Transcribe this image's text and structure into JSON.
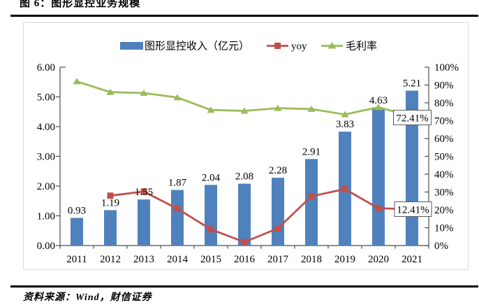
{
  "page": {
    "title": "图 6：图形显控业务规模",
    "source": "资料来源：Wind，财信证券"
  },
  "chart_data": {
    "type": "bar",
    "title": "图 6：图形显控业务规模",
    "categories": [
      "2011",
      "2012",
      "2013",
      "2014",
      "2015",
      "2016",
      "2017",
      "2018",
      "2019",
      "2020",
      "2021"
    ],
    "series": [
      {
        "name": "图形显控收入（亿元）",
        "type": "bar",
        "axis": "left",
        "color": "#4F81BD",
        "values": [
          0.93,
          1.19,
          1.55,
          1.87,
          2.04,
          2.08,
          2.28,
          2.91,
          3.83,
          4.63,
          5.21
        ],
        "labels": [
          "0.93",
          "1.19",
          "1.55",
          "1.87",
          "2.04",
          "2.08",
          "2.28",
          "2.91",
          "3.83",
          "4.63",
          "5.21"
        ]
      },
      {
        "name": "yoy",
        "type": "line",
        "marker": "square",
        "axis": "right",
        "color": "#C0504D",
        "values": [
          null,
          27.96,
          30.25,
          20.65,
          9.09,
          1.96,
          9.62,
          27.63,
          31.62,
          20.89,
          12.41
        ]
      },
      {
        "name": "毛利率",
        "type": "line",
        "marker": "triangle",
        "axis": "right",
        "color": "#9BBB59",
        "values": [
          92,
          86,
          85.5,
          83,
          76,
          75.5,
          77,
          76.5,
          73.5,
          77.5,
          72.41
        ]
      }
    ],
    "annotations": [
      {
        "text": "72.41%",
        "category": "2021",
        "series_index": 2
      },
      {
        "text": "12.41%",
        "category": "2021",
        "series_index": 1
      }
    ],
    "left_axis": {
      "min": 0,
      "max": 6,
      "step": 1,
      "labels": [
        "0.00",
        "1.00",
        "2.00",
        "3.00",
        "4.00",
        "5.00",
        "6.00"
      ]
    },
    "right_axis": {
      "min": 0,
      "max": 100,
      "step": 10,
      "labels": [
        "0%",
        "10%",
        "20%",
        "30%",
        "40%",
        "50%",
        "60%",
        "70%",
        "80%",
        "90%",
        "100%"
      ]
    },
    "legend_position": "top",
    "grid": false
  }
}
